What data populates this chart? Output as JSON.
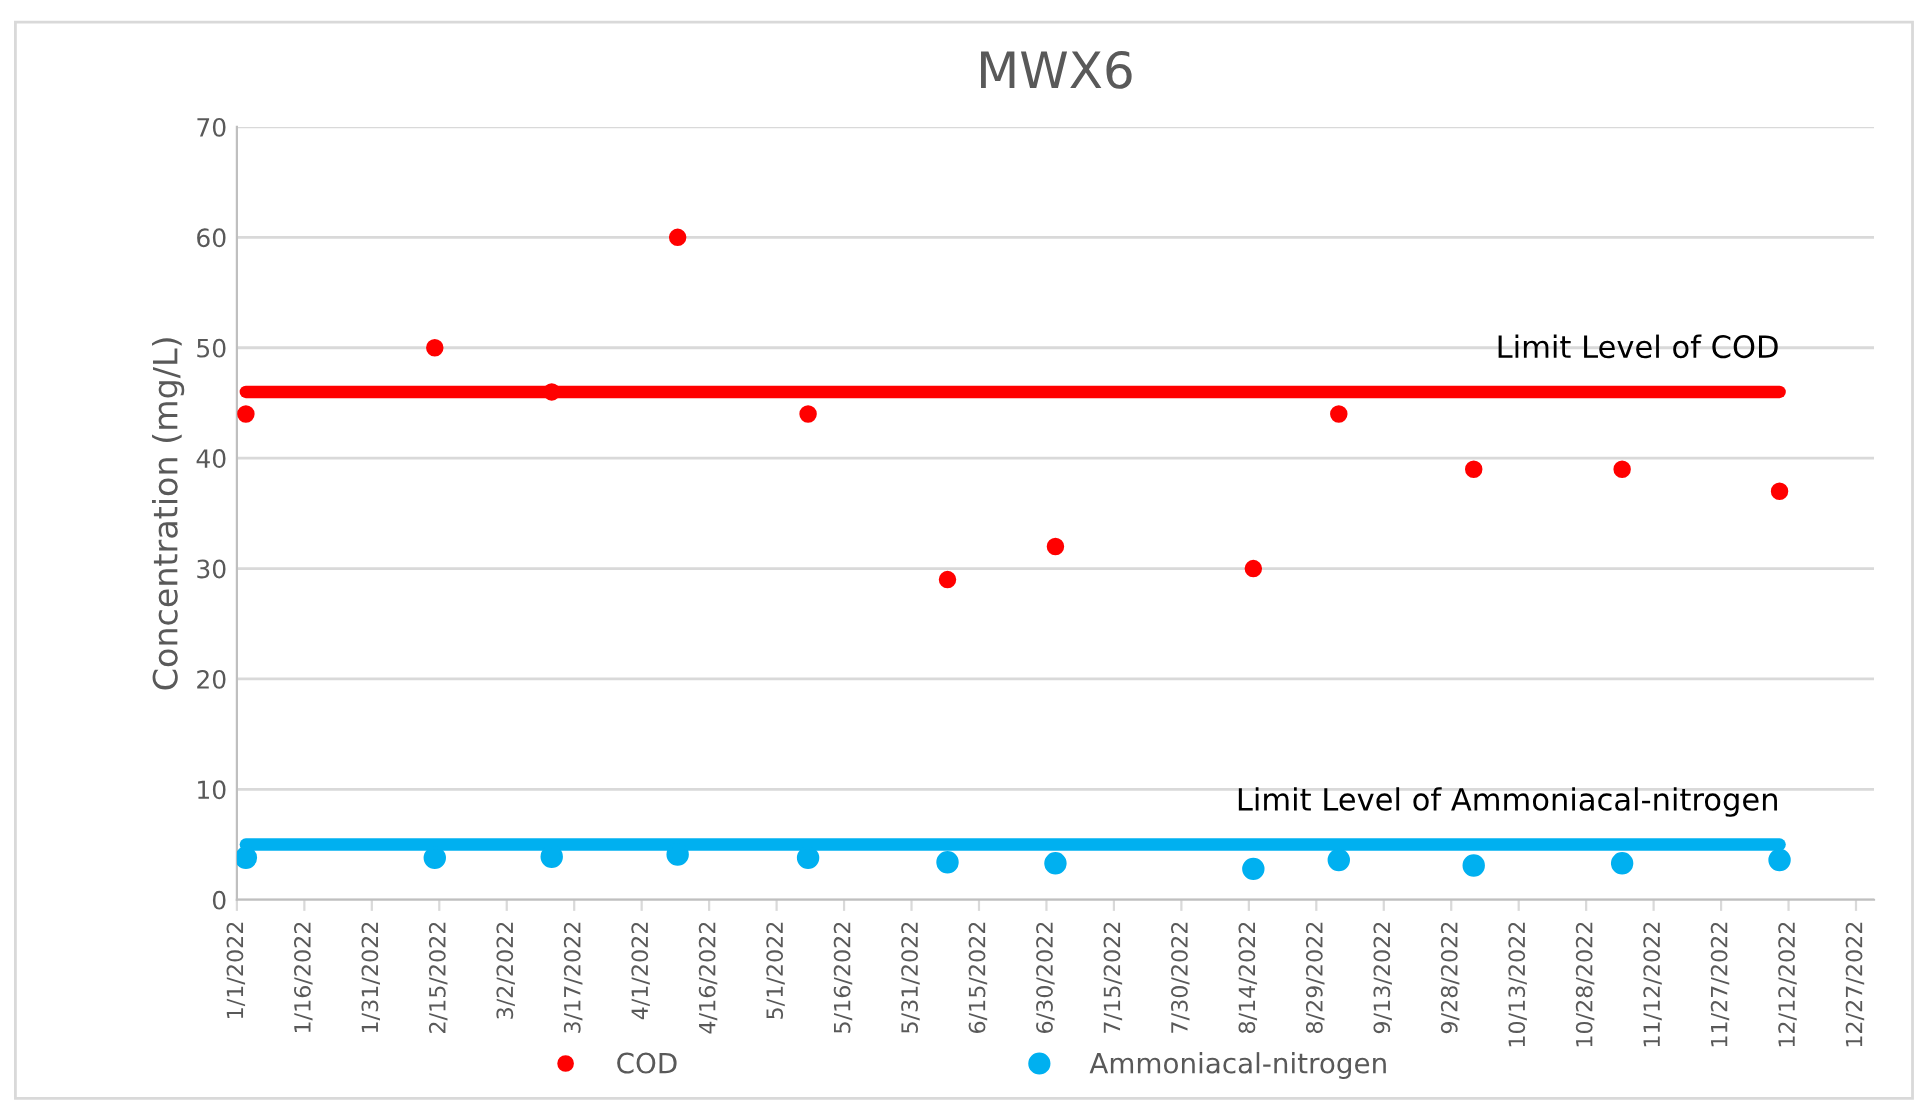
{
  "chart_data": {
    "type": "scatter",
    "title": "MWX6",
    "ylabel": "Concentration (mg/L)",
    "x": [
      "2022-01-03",
      "2022-02-14",
      "2022-03-12",
      "2022-04-09",
      "2022-05-08",
      "2022-06-08",
      "2022-07-02",
      "2022-08-15",
      "2022-09-03",
      "2022-10-03",
      "2022-11-05",
      "2022-12-10"
    ],
    "series": [
      {
        "name": "COD",
        "color": "#ff0000",
        "values": [
          44,
          50,
          46,
          60,
          44,
          29,
          32,
          30,
          44,
          39,
          39,
          37
        ]
      },
      {
        "name": "Ammoniacal-nitrogen",
        "color": "#00b0f0",
        "values": [
          3.8,
          3.8,
          3.9,
          4.1,
          3.8,
          3.4,
          3.3,
          2.8,
          3.6,
          3.1,
          3.3,
          3.6
        ]
      },
      {
        "type": "line",
        "marker": "none",
        "color": "#ff0000",
        "x": [
          "2022-01-03",
          "2022-12-10"
        ],
        "values": [
          46,
          46
        ]
      },
      {
        "type": "line",
        "marker": "none",
        "color": "#00b0f0",
        "x": [
          "2022-01-03",
          "2022-12-10"
        ],
        "values": [
          5,
          5
        ]
      }
    ],
    "annotations": [
      {
        "text": "Limit Level of COD",
        "x": "2022-12-10",
        "y": 46
      },
      {
        "text": "Limit Level of Ammoniacal-nitrogen",
        "x": "2022-12-10",
        "y": 5
      }
    ],
    "ylim": [
      0,
      70
    ],
    "yticks": [
      0,
      10,
      20,
      30,
      40,
      50,
      60,
      70
    ],
    "xlim": [
      "2022-01-01",
      "2022-12-31"
    ],
    "xticks": [
      {
        "value": "2022-01-01",
        "label": "1/1/2022"
      },
      {
        "value": "2022-01-16",
        "label": "1/16/2022"
      },
      {
        "value": "2022-01-31",
        "label": "1/31/2022"
      },
      {
        "value": "2022-02-15",
        "label": "2/15/2022"
      },
      {
        "value": "2022-03-02",
        "label": "3/2/2022"
      },
      {
        "value": "2022-03-17",
        "label": "3/17/2022"
      },
      {
        "value": "2022-04-01",
        "label": "4/1/2022"
      },
      {
        "value": "2022-04-16",
        "label": "4/16/2022"
      },
      {
        "value": "2022-05-01",
        "label": "5/1/2022"
      },
      {
        "value": "2022-05-16",
        "label": "5/16/2022"
      },
      {
        "value": "2022-05-31",
        "label": "5/31/2022"
      },
      {
        "value": "2022-06-15",
        "label": "6/15/2022"
      },
      {
        "value": "2022-06-30",
        "label": "6/30/2022"
      },
      {
        "value": "2022-07-15",
        "label": "7/15/2022"
      },
      {
        "value": "2022-07-30",
        "label": "7/30/2022"
      },
      {
        "value": "2022-08-14",
        "label": "8/14/2022"
      },
      {
        "value": "2022-08-29",
        "label": "8/29/2022"
      },
      {
        "value": "2022-09-13",
        "label": "9/13/2022"
      },
      {
        "value": "2022-09-28",
        "label": "9/28/2022"
      },
      {
        "value": "2022-10-13",
        "label": "10/13/2022"
      },
      {
        "value": "2022-10-28",
        "label": "10/28/2022"
      },
      {
        "value": "2022-11-12",
        "label": "11/12/2022"
      },
      {
        "value": "2022-11-27",
        "label": "11/27/2022"
      },
      {
        "value": "2022-12-12",
        "label": "12/12/2022"
      },
      {
        "value": "2022-12-27",
        "label": "12/27/2022"
      }
    ],
    "grid": "y",
    "legend": "bottom",
    "marker": "circle"
  }
}
